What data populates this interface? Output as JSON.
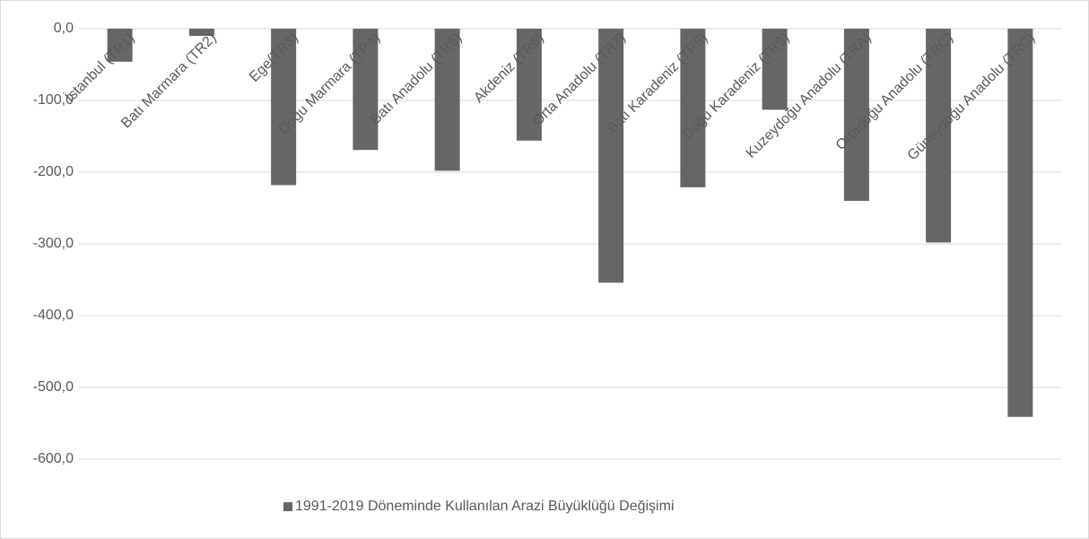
{
  "chart_data": {
    "type": "bar",
    "categories": [
      "İstanbul (TR1)",
      "Batı Marmara (TR2)",
      "Ege(TR3)",
      "Doğu Marmara (TR4)",
      "Batı Anadolu (TR5)",
      "Akdeniz (TR6)",
      "Orta Anadolu (TR7)",
      "Batı Karadeniz (TR8)",
      "Doğu Karadeniz (TR9)",
      "Kuzeydoğu Anadolu (TRA)",
      "Ortadoğu Anadolu (TRC)",
      "Güneydoğu Anadolu (TRC)"
    ],
    "series": [
      {
        "name": "1991-2019 Döneminde Kullanılan Arazi Büyüklüğü Değişimi",
        "color": "#666666",
        "values": [
          -46,
          -10,
          -218,
          -169,
          -198,
          -156,
          -354,
          -221,
          -113,
          -240,
          -298,
          -541
        ]
      }
    ],
    "ylim": [
      -600,
      0
    ],
    "yticks": [
      {
        "value": 0,
        "label": "0,0"
      },
      {
        "value": -100,
        "label": "-100,0"
      },
      {
        "value": -200,
        "label": "-200,0"
      },
      {
        "value": -300,
        "label": "-300,0"
      },
      {
        "value": -400,
        "label": "-400,0"
      },
      {
        "value": -500,
        "label": "-500,0"
      },
      {
        "value": -600,
        "label": "-600,0"
      }
    ],
    "grid": true,
    "legend": "bottom"
  }
}
